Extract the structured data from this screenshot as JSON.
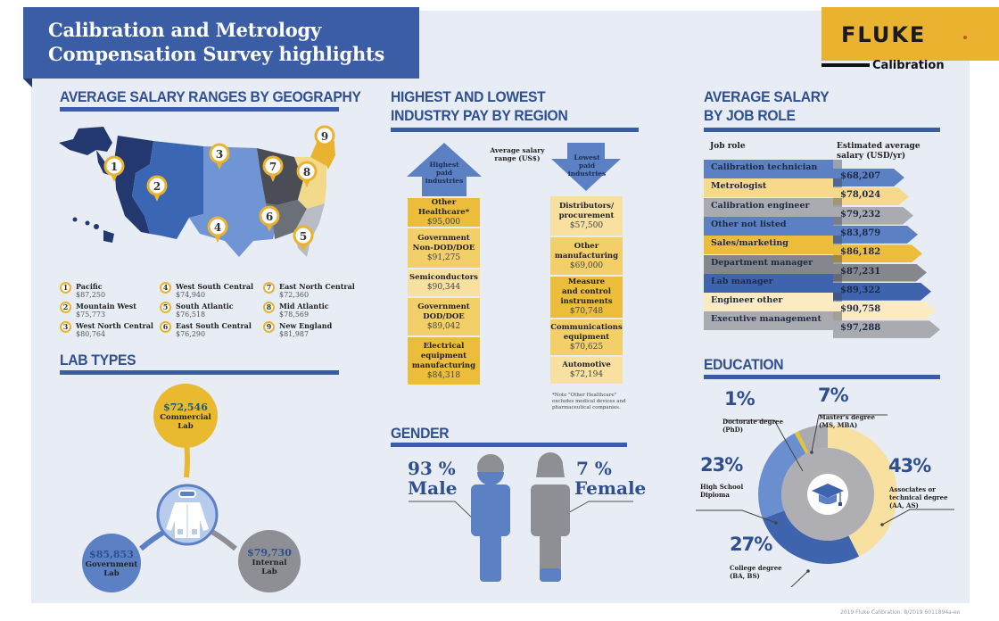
{
  "title": {
    "line1": "Calibration and Metrology",
    "line2": "Compensation Survey highlights"
  },
  "logo": {
    "brand": "FLUKE",
    "sub": "Calibration",
    "colors": {
      "brand_yellow": "#e9b32f",
      "brand_dot": "#c8531d"
    }
  },
  "geography": {
    "heading": "AVERAGE SALARY RANGES BY GEOGRAPHY",
    "regions": [
      {
        "num": "1",
        "name": "Pacific",
        "salary": "$87,250",
        "color": "#22386e"
      },
      {
        "num": "2",
        "name": "Mountain West",
        "salary": "$75,773",
        "color": "#3a66b4"
      },
      {
        "num": "3",
        "name": "West North Central",
        "salary": "$80,764",
        "color": "#6f95d4"
      },
      {
        "num": "4",
        "name": "West South Central",
        "salary": "$74,940",
        "color": "#6f95d4"
      },
      {
        "num": "5",
        "name": "South Atlantic",
        "salary": "$76,518",
        "color": "#b9bcc4"
      },
      {
        "num": "6",
        "name": "East South Central",
        "salary": "$76,290",
        "color": "#6b6f78"
      },
      {
        "num": "7",
        "name": "East North Central",
        "salary": "$72,360",
        "color": "#4a4d55"
      },
      {
        "num": "8",
        "name": "Mid Atlantic",
        "salary": "$78,569",
        "color": "#f3d98a"
      },
      {
        "num": "9",
        "name": "New England",
        "salary": "$81,987",
        "color": "#e9b32f"
      }
    ]
  },
  "lab_types": {
    "heading": "LAB TYPES",
    "labs": [
      {
        "salary": "$72,546",
        "line1": "Commercial",
        "line2": "Lab",
        "color": "#e9b92f"
      },
      {
        "salary": "$85,853",
        "line1": "Government",
        "line2": "Lab",
        "color": "#5b80c4"
      },
      {
        "salary": "$79,730",
        "line1": "Internal",
        "line2": "Lab",
        "color": "#8e8f94"
      }
    ]
  },
  "industry": {
    "heading_line1": "HIGHEST AND LOWEST",
    "heading_line2": "INDUSTRY PAY BY REGION",
    "highest_label": [
      "Highest",
      "paid",
      "industries"
    ],
    "lowest_label": [
      "Lowest",
      "paid",
      "industries"
    ],
    "range_label": [
      "Average salary",
      "range (US$)"
    ],
    "highest": [
      {
        "name": [
          "Other Healthcare*"
        ],
        "salary": "$95,000"
      },
      {
        "name": [
          "Government",
          "Non-DOD/DOE"
        ],
        "salary": "$91,275"
      },
      {
        "name": [
          "Semiconductors"
        ],
        "salary": "$90,344"
      },
      {
        "name": [
          "Government",
          "DOD/DOE"
        ],
        "salary": "$89,042"
      },
      {
        "name": [
          "Electrical",
          "equipment",
          "manufacturing"
        ],
        "salary": "$84,318"
      }
    ],
    "lowest": [
      {
        "name": [
          "Distributors/",
          "procurement"
        ],
        "salary": "$57,500"
      },
      {
        "name": [
          "Other",
          "manufacturing"
        ],
        "salary": "$69,000"
      },
      {
        "name": [
          "Measure",
          "and control",
          "instruments"
        ],
        "salary": "$70,748"
      },
      {
        "name": [
          "Communications",
          "equipment"
        ],
        "salary": "$70,625"
      },
      {
        "name": [
          "Automotive"
        ],
        "salary": "$72,194"
      }
    ],
    "note": [
      "*Note \"Other Healthcare\"",
      "excludes medical devices and",
      "pharmaceutical companies."
    ]
  },
  "gender": {
    "heading": "GENDER",
    "male_pct": "93 %",
    "male_label": "Male",
    "female_pct": "7 %",
    "female_label": "Female",
    "male_share": 93,
    "female_share": 7
  },
  "job_role": {
    "heading_line1": "AVERAGE SALARY",
    "heading_line2": "BY JOB ROLE",
    "col1": "Job role",
    "col2_line1": "Estimated average",
    "col2_line2": "salary (USD/yr)",
    "rows": [
      {
        "role": "Calibration technician",
        "salary": "$68,207",
        "color": "#5b80c4"
      },
      {
        "role": "Metrologist",
        "salary": "$78,024",
        "color": "#f6d98b"
      },
      {
        "role": "Calibration engineer",
        "salary": "$79,232",
        "color": "#a9abb1"
      },
      {
        "role": "Other not listed",
        "salary": "$83,879",
        "color": "#5b80c4"
      },
      {
        "role": "Sales/marketing",
        "salary": "$86,182",
        "color": "#ecbd3a"
      },
      {
        "role": "Department manager",
        "salary": "$87,231",
        "color": "#85878d"
      },
      {
        "role": "Lab manager",
        "salary": "$89,322",
        "color": "#3e64ad"
      },
      {
        "role": "Engineer other",
        "salary": "$90,758",
        "color": "#fbeac2"
      },
      {
        "role": "Executive management",
        "salary": "$97,288",
        "color": "#a9abb1"
      }
    ]
  },
  "education": {
    "heading": "EDUCATION",
    "segments": [
      {
        "pct": "1%",
        "label": [
          "Doctorate degree",
          "(PhD)"
        ],
        "value": 1,
        "color": "#e9c22f"
      },
      {
        "pct": "7%",
        "label": [
          "Master's degree",
          "(MS, MBA)"
        ],
        "value": 7,
        "color": "#a9abb1"
      },
      {
        "pct": "43%",
        "label": [
          "Associates or",
          "technical degree",
          "(AA, AS)"
        ],
        "value": 43,
        "color": "#f8e0a0"
      },
      {
        "pct": "27%",
        "label": [
          "College degree",
          "(BA, BS)"
        ],
        "value": 27,
        "color": "#3e64ad"
      },
      {
        "pct": "23%",
        "label": [
          "High School",
          "Diploma"
        ],
        "value": 23,
        "color": "#6a8fd0"
      }
    ]
  },
  "footer": "2019 Fluke Calibration. 8/2019 6011894a-en"
}
